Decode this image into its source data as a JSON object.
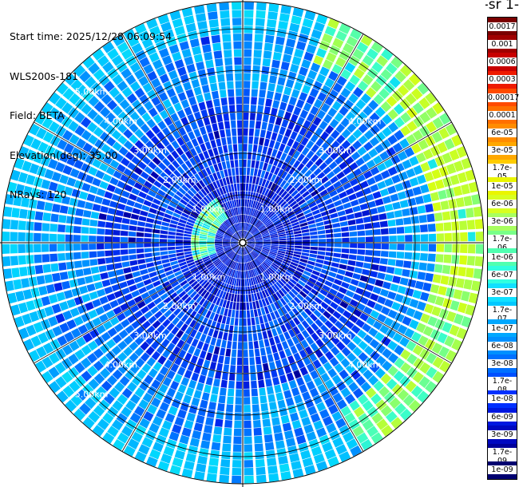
{
  "info": {
    "start_time": "Start time: 2025/12/28 06:09:54",
    "instrument": "WLS200s-181",
    "field": "Field: BETA",
    "elevation": "Elevation(deg): 35.00",
    "nrays": "NRays: 120"
  },
  "colorbar": {
    "title": "-1 sr-",
    "labels": [
      "0.0017",
      "0.001",
      "0.0006",
      "0.0003",
      "0.00017",
      "0.0001",
      "6e-05",
      "3e-05",
      "1.7e-05",
      "1e-05",
      "6e-06",
      "3e-06",
      "1.7e-06",
      "1e-06",
      "6e-07",
      "3e-07",
      "1.7e-07",
      "1e-07",
      "6e-08",
      "3e-08",
      "1.7e-08",
      "1e-08",
      "6e-09",
      "3e-09",
      "1.7e-09",
      "1e-09"
    ],
    "colors": [
      "#7a0000",
      "#a00000",
      "#c80000",
      "#ee1a00",
      "#ff4b00",
      "#ff7000",
      "#ff8c00",
      "#ffa800",
      "#ffcc00",
      "#eaf500",
      "#d8ff20",
      "#a8ff60",
      "#78ff88",
      "#50ffb0",
      "#30ffe0",
      "#10e0ff",
      "#00c8ff",
      "#00a8ff",
      "#0090ff",
      "#0070ff",
      "#0050ff",
      "#0030ff",
      "#0018e0",
      "#0008c0",
      "#00009a",
      "#000070"
    ]
  },
  "chart_data": {
    "type": "heatmap",
    "projection": "polar PPI",
    "field": "BETA",
    "elevation_deg": 35.0,
    "nrays": 120,
    "range_rings_km": [
      1,
      2,
      3,
      4,
      5
    ],
    "ring_labels": [
      "1.00km",
      "2.00km",
      "3.00km",
      "4.00km",
      "5.00km"
    ],
    "max_range_km": 5.8,
    "colorbar_levels": [
      "0.0017",
      "0.001",
      "0.0006",
      "0.0003",
      "0.00017",
      "0.0001",
      "6e-05",
      "3e-05",
      "1.7e-05",
      "1e-05",
      "6e-06",
      "3e-06",
      "1.7e-06",
      "1e-06",
      "6e-07",
      "3e-07",
      "1.7e-07",
      "1e-07",
      "6e-08",
      "3e-08",
      "1.7e-08",
      "1e-08",
      "6e-09",
      "3e-09",
      "1.7e-09",
      "1e-09"
    ]
  }
}
